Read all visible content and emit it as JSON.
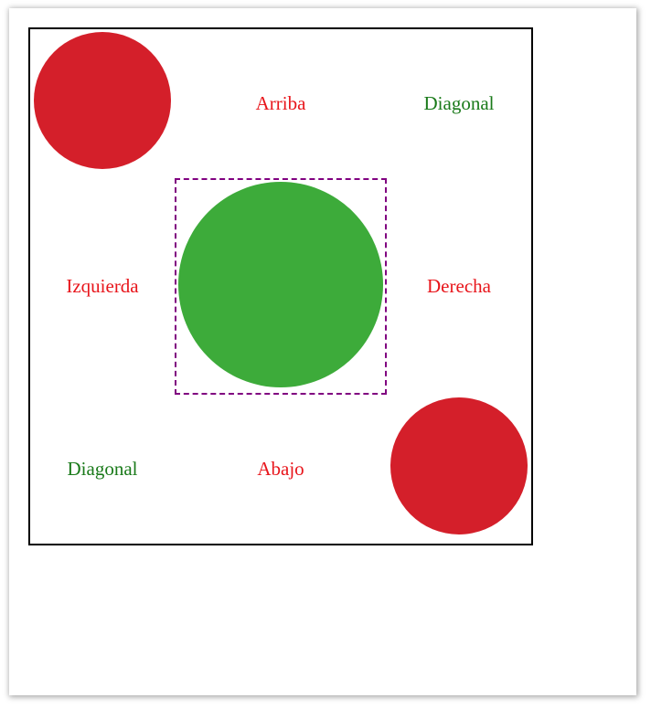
{
  "colors": {
    "red_circle": "#d41f2a",
    "green_circle": "#3dab3a",
    "red_text": "#e8151b",
    "green_text": "#1a7a1a",
    "dashed_border": "#800080",
    "board_border": "#000000"
  },
  "labels": {
    "top": "Arriba",
    "top_right": "Diagonal",
    "left": "Izquierda",
    "right": "Derecha",
    "bottom_left": "Diagonal",
    "bottom": "Abajo"
  }
}
